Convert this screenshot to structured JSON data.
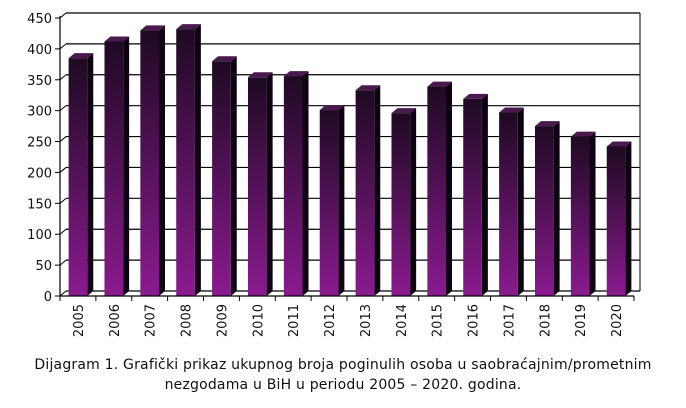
{
  "chart_data": {
    "type": "bar",
    "categories": [
      "2005",
      "2006",
      "2007",
      "2008",
      "2009",
      "2010",
      "2011",
      "2012",
      "2013",
      "2014",
      "2015",
      "2016",
      "2017",
      "2018",
      "2019",
      "2020"
    ],
    "values": [
      385,
      412,
      430,
      432,
      380,
      354,
      356,
      301,
      333,
      296,
      339,
      319,
      297,
      275,
      258,
      242
    ],
    "ylim": [
      0,
      450
    ],
    "yticks": [
      0,
      50,
      100,
      150,
      200,
      250,
      300,
      350,
      400,
      450
    ],
    "grid": true,
    "colors": {
      "bar_top": "#1e0a22",
      "bar_bottom": "#8a1a8f",
      "bar_side": "#0e0411",
      "bar_cap": "#4a1a4e",
      "grid": "#000000"
    }
  },
  "caption": {
    "line1": "Dijagram 1. Grafički prikaz ukupnog broja poginulih osoba u saobraćajnim/prometnim",
    "line2": "nezgodama u BiH u periodu 2005 – 2020. godina."
  }
}
